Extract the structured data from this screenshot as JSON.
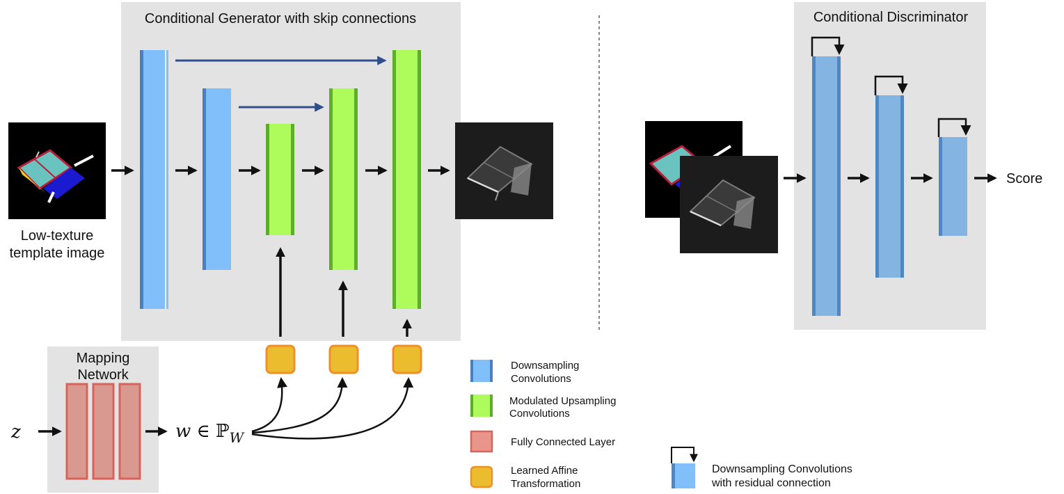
{
  "generator": {
    "title": "Conditional Generator with skip connections"
  },
  "discriminator": {
    "title": "Conditional Discriminator",
    "output_label": "Score"
  },
  "input_image": {
    "label_line1": "Low-texture",
    "label_line2": "template image"
  },
  "mapping": {
    "title_line1": "Mapping",
    "title_line2": "Network",
    "input_symbol": "z",
    "output_w": "w",
    "output_set": " ∈ ℙ",
    "output_sub": "W"
  },
  "legend": {
    "downsampling_line1": "Downsampling",
    "downsampling_line2": "Convolutions",
    "upsampling_line1": "Modulated Upsampling",
    "upsampling_line2": "Convolutions",
    "fully_connected": "Fully Connected Layer",
    "affine_line1": "Learned Affine",
    "affine_line2": "Transformation",
    "residual_line1": "Downsampling Convolutions",
    "residual_line2": "with residual connection"
  },
  "colors": {
    "panel": "#e3e3e3",
    "down_fill": "#80bffa",
    "down_edge": "#4a7fc0",
    "up_fill": "#aefc5c",
    "up_edge": "#5fae2a",
    "disc_fill": "#84b4e2",
    "disc_edge": "#4f86c4",
    "fc_fill": "#d99890",
    "fc_edge": "#d8635a",
    "affine_fill": "#ebbd2e",
    "affine_edge": "#ef8f2a",
    "skip_arrow": "#2f4f8a"
  }
}
